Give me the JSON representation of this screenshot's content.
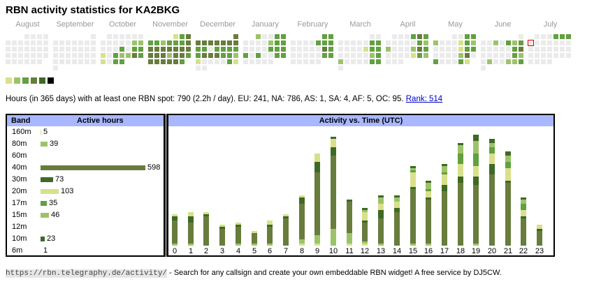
{
  "title": "RBN activity statistics for KA2BKG",
  "levels": [
    "#ebebeb",
    "#d9e08b",
    "#9dc36a",
    "#62a040",
    "#687c3c",
    "#3d6a24",
    "#000000"
  ],
  "heatmap": {
    "months": [
      {
        "label": "August",
        "start_col": 3,
        "rows": [
          [
            0,
            0,
            0,
            0
          ],
          [
            0,
            0,
            0,
            0,
            0,
            0,
            0
          ],
          [
            0,
            0,
            0,
            0,
            0,
            0,
            0
          ],
          [
            0,
            0,
            0,
            0,
            0,
            0,
            0
          ],
          [
            0,
            0,
            0,
            0,
            0,
            0
          ]
        ]
      },
      {
        "label": "September",
        "start_col": 6,
        "rows": [
          [
            0
          ],
          [
            0,
            0,
            0,
            0,
            0,
            0,
            0
          ],
          [
            0,
            0,
            0,
            0,
            0,
            0,
            0
          ],
          [
            0,
            0,
            0,
            0,
            0,
            0,
            0
          ],
          [
            0,
            0,
            0,
            0,
            0,
            0,
            0
          ],
          [
            0
          ]
        ]
      },
      {
        "label": "October",
        "start_col": 1,
        "rows": [
          [
            0,
            0,
            0,
            0,
            0,
            0
          ],
          [
            0,
            0,
            0,
            0,
            0,
            2,
            2
          ],
          [
            0,
            0,
            0,
            3,
            0,
            3,
            3
          ],
          [
            1,
            0,
            3,
            2,
            2,
            4,
            3
          ],
          [
            1,
            0,
            3,
            3
          ]
        ]
      },
      {
        "label": "November",
        "start_col": 4,
        "rows": [
          [
            1,
            3,
            4
          ],
          [
            3,
            3,
            2,
            3,
            3,
            3,
            4
          ],
          [
            4,
            4,
            4,
            4,
            4,
            4,
            4
          ],
          [
            4,
            4,
            4,
            2,
            4,
            4,
            3
          ],
          [
            4,
            4,
            4,
            4,
            4,
            3
          ]
        ]
      },
      {
        "label": "December",
        "start_col": 6,
        "rows": [
          [
            4
          ],
          [
            4,
            4,
            4,
            4,
            4,
            4,
            4
          ],
          [
            3,
            3,
            0,
            3,
            3,
            3,
            3
          ],
          [
            3,
            4,
            4,
            4,
            3,
            3,
            2
          ],
          [
            1,
            0,
            0,
            0,
            0,
            3,
            1
          ],
          [
            0,
            0
          ]
        ]
      },
      {
        "label": "January",
        "start_col": 2,
        "rows": [
          [
            2,
            0,
            0,
            3,
            3
          ],
          [
            0,
            0,
            0,
            0,
            2,
            3,
            3
          ],
          [
            0,
            0,
            0,
            0,
            3,
            3,
            3
          ],
          [
            3,
            0,
            3,
            0,
            0,
            3,
            3
          ],
          [
            0,
            0,
            0,
            0,
            0
          ]
        ]
      },
      {
        "label": "February",
        "start_col": 5,
        "rows": [
          [
            3,
            3
          ],
          [
            0,
            0,
            0,
            0,
            3,
            3,
            3
          ],
          [
            0,
            0,
            0,
            0,
            0,
            4,
            3
          ],
          [
            0,
            0,
            0,
            0,
            0,
            3,
            3
          ],
          [
            0,
            0,
            0,
            0,
            0
          ]
        ]
      },
      {
        "label": "March",
        "start_col": 5,
        "rows": [
          [
            0,
            0
          ],
          [
            0,
            0,
            0,
            0,
            0,
            3,
            3
          ],
          [
            0,
            0,
            0,
            0,
            1,
            3,
            3
          ],
          [
            0,
            0,
            0,
            0,
            0,
            2,
            3
          ],
          [
            2,
            0,
            0,
            0,
            0,
            3,
            3
          ],
          [
            0
          ]
        ]
      },
      {
        "label": "April",
        "start_col": 1,
        "rows": [
          [
            0,
            0,
            0,
            3,
            4,
            3
          ],
          [
            0,
            0,
            0,
            0,
            0,
            3,
            2
          ],
          [
            2,
            0,
            0,
            0,
            2,
            4,
            3
          ],
          [
            0,
            0,
            0,
            0,
            1,
            3,
            2
          ],
          [
            0,
            0,
            0
          ]
        ]
      },
      {
        "label": "May",
        "start_col": 3,
        "rows": [
          [
            0,
            0,
            3,
            3
          ],
          [
            2,
            0,
            0,
            0,
            1,
            3,
            2
          ],
          [
            0,
            0,
            0,
            0,
            1,
            3,
            3
          ],
          [
            0,
            0,
            0,
            0,
            2,
            4,
            0
          ],
          [
            3,
            0,
            0,
            0,
            3,
            1
          ]
        ]
      },
      {
        "label": "June",
        "start_col": 6,
        "rows": [
          [
            0
          ],
          [
            0,
            0,
            2,
            0,
            3,
            2,
            3
          ],
          [
            0,
            0,
            0,
            0,
            0,
            3,
            4
          ],
          [
            0,
            0,
            0,
            0,
            0,
            3,
            2
          ],
          [
            0,
            2,
            0,
            0,
            2,
            2,
            3
          ],
          [
            0
          ]
        ]
      },
      {
        "label": "July",
        "start_col": 1,
        "rows": [
          [
            0,
            0,
            0,
            3,
            3,
            3
          ],
          [
            0,
            0,
            0,
            0,
            0,
            0,
            0
          ],
          [
            0,
            0,
            0,
            0,
            0,
            0,
            0
          ],
          [
            0,
            0,
            0,
            0,
            0,
            0,
            0
          ],
          [
            0,
            0,
            0,
            0
          ]
        ],
        "today": [
          1,
          0
        ]
      }
    ]
  },
  "summary": {
    "text": "Hours (in 365 days) with at least one RBN spot: 790 (2.2h / day). EU: 241, NA: 786, AS: 1, SA: 4, AF: 5, OC: 95.",
    "rank_link": "Rank: 514"
  },
  "bands": {
    "header_band": "Band",
    "header_hours": "Active hours",
    "max": 598,
    "rows": [
      {
        "band": "160m",
        "hours": "5",
        "value": 5,
        "color": "#d9e08b"
      },
      {
        "band": "80m",
        "hours": "39",
        "value": 39,
        "color": "#9dc36a"
      },
      {
        "band": "60m",
        "hours": "",
        "value": 0,
        "color": "#62a040"
      },
      {
        "band": "40m",
        "hours": "598",
        "value": 598,
        "color": "#687c3c"
      },
      {
        "band": "30m",
        "hours": "73",
        "value": 73,
        "color": "#3d6a24"
      },
      {
        "band": "20m",
        "hours": "103",
        "value": 103,
        "color": "#d9e08b"
      },
      {
        "band": "17m",
        "hours": "35",
        "value": 35,
        "color": "#62a040"
      },
      {
        "band": "15m",
        "hours": "46",
        "value": 46,
        "color": "#9dc36a"
      },
      {
        "band": "12m",
        "hours": "",
        "value": 0,
        "color": "#62a040"
      },
      {
        "band": "10m",
        "hours": "23",
        "value": 23,
        "color": "#3d6a24"
      },
      {
        "band": "6m",
        "hours": "1",
        "value": 1,
        "color": "#62a040"
      }
    ]
  },
  "chart_data": {
    "type": "bar",
    "stacked": true,
    "title": "Activity vs. Time (UTC)",
    "xlabel": "",
    "ylabel": "",
    "categories": [
      "0",
      "1",
      "2",
      "3",
      "4",
      "5",
      "6",
      "7",
      "8",
      "9",
      "10",
      "11",
      "12",
      "13",
      "14",
      "15",
      "16",
      "17",
      "18",
      "19",
      "20",
      "21",
      "22",
      "23"
    ],
    "series": [
      {
        "name": "160m",
        "color": "#d9e08b",
        "values": [
          0,
          0,
          0,
          0,
          0,
          0,
          0,
          0,
          1,
          1,
          0,
          1,
          1,
          0,
          0,
          0,
          0,
          0,
          0,
          0,
          0,
          0,
          0,
          0
        ]
      },
      {
        "name": "80m",
        "color": "#9dc36a",
        "values": [
          1,
          1,
          0,
          0,
          1,
          1,
          1,
          0,
          2,
          4,
          8,
          5,
          1,
          1,
          0,
          1,
          1,
          0,
          0,
          1,
          0,
          0,
          0,
          0
        ]
      },
      {
        "name": "40m",
        "color": "#687c3c",
        "values": [
          11,
          10,
          14,
          8,
          8,
          5,
          8,
          13,
          17,
          30,
          35,
          15,
          9,
          12,
          16,
          26,
          21,
          26,
          30,
          28,
          34,
          30,
          13,
          7
        ]
      },
      {
        "name": "30m",
        "color": "#3d6a24",
        "values": [
          2,
          3,
          1,
          1,
          1,
          0,
          1,
          1,
          3,
          5,
          4,
          1,
          1,
          4,
          2,
          1,
          1,
          3,
          3,
          4,
          5,
          1,
          1,
          1
        ]
      },
      {
        "name": "20m",
        "color": "#d9e08b",
        "values": [
          1,
          2,
          1,
          1,
          1,
          1,
          2,
          1,
          1,
          4,
          4,
          0,
          4,
          3,
          3,
          7,
          3,
          5,
          6,
          5,
          5,
          6,
          3,
          2
        ]
      },
      {
        "name": "17m",
        "color": "#62a040",
        "values": [
          0,
          0,
          0,
          0,
          0,
          0,
          0,
          0,
          0,
          0,
          0,
          0,
          0,
          0,
          0,
          1,
          1,
          1,
          5,
          6,
          3,
          3,
          3,
          0
        ]
      },
      {
        "name": "15m",
        "color": "#9dc36a",
        "values": [
          0,
          0,
          0,
          0,
          0,
          0,
          0,
          0,
          0,
          0,
          0,
          0,
          1,
          3,
          2,
          1,
          3,
          3,
          4,
          6,
          2,
          3,
          2,
          0
        ]
      },
      {
        "name": "10m",
        "color": "#3d6a24",
        "values": [
          0,
          0,
          0,
          0,
          0,
          0,
          0,
          0,
          0,
          0,
          1,
          0,
          1,
          1,
          1,
          1,
          1,
          1,
          1,
          3,
          2,
          2,
          1,
          0
        ]
      }
    ],
    "ylim": [
      0,
      56
    ],
    "grid": false,
    "legend": "none"
  },
  "footer": {
    "url": "https://rbn.telegraphy.de/activity/",
    "text": " - Search for any callsign and create your own embeddable RBN widget! A free service by DJ5CW."
  }
}
